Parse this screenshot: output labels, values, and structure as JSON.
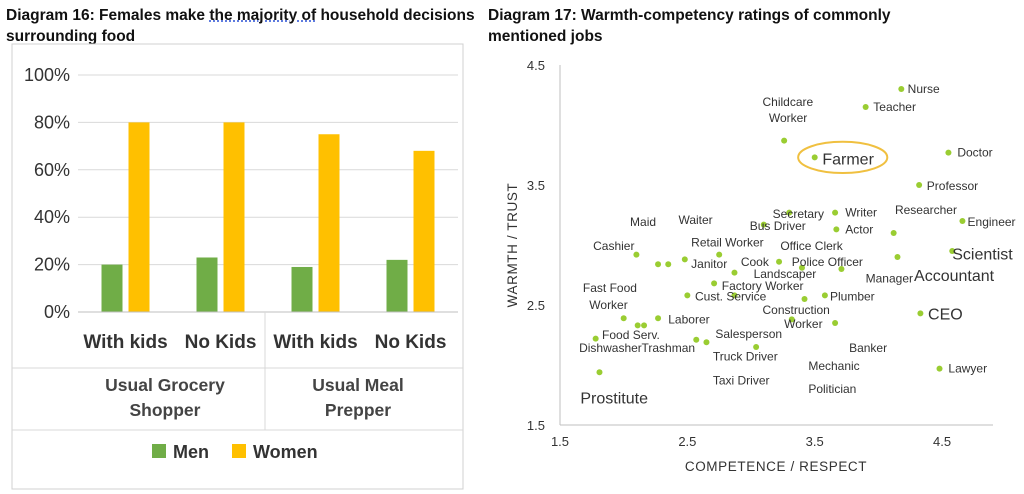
{
  "chart_data": [
    {
      "type": "bar",
      "title_prefix": "Diagram 16: Females make ",
      "title_link": "the majority of",
      "title_suffix": " household decisions surrounding food",
      "categories": [
        "With kids",
        "No Kids",
        "With kids",
        "No Kids"
      ],
      "groups": [
        {
          "label_lines": [
            "Usual Grocery",
            "Shopper"
          ],
          "span": [
            0,
            1
          ]
        },
        {
          "label_lines": [
            "Usual Meal",
            "Prepper"
          ],
          "span": [
            2,
            3
          ]
        }
      ],
      "series": [
        {
          "name": "Men",
          "color": "#70ad47",
          "values": [
            0.2,
            0.23,
            0.19,
            0.22
          ]
        },
        {
          "name": "Women",
          "color": "#ffc000",
          "values": [
            0.8,
            0.8,
            0.75,
            0.68
          ]
        }
      ],
      "ylim": [
        0,
        1
      ],
      "yticks": [
        "0%",
        "20%",
        "40%",
        "60%",
        "80%",
        "100%"
      ],
      "grid": true,
      "legend": "bottom"
    },
    {
      "type": "scatter",
      "title_lines": [
        "Diagram 17: Warmth-competency ratings of commonly",
        "mentioned jobs"
      ],
      "xlabel": "COMPETENCE / RESPECT",
      "ylabel": "WARMTH / TRUST",
      "xlim": [
        1.5,
        4.9
      ],
      "ylim": [
        1.5,
        4.5
      ],
      "xticks": [
        "1.5",
        "2.5",
        "3.5",
        "4.5"
      ],
      "yticks": [
        "1.5",
        "2.5",
        "3.5",
        "4.5"
      ],
      "grid": false,
      "point_color": "#9acd32",
      "points": [
        {
          "x": 4.18,
          "y": 4.3
        },
        {
          "x": 3.9,
          "y": 4.15
        },
        {
          "x": 3.26,
          "y": 3.87
        },
        {
          "x": 3.5,
          "y": 3.73
        },
        {
          "x": 4.55,
          "y": 3.77
        },
        {
          "x": 4.32,
          "y": 3.5
        },
        {
          "x": 3.66,
          "y": 3.27
        },
        {
          "x": 4.66,
          "y": 3.2
        },
        {
          "x": 3.67,
          "y": 3.13
        },
        {
          "x": 3.3,
          "y": 3.27
        },
        {
          "x": 3.1,
          "y": 3.17
        },
        {
          "x": 4.12,
          "y": 3.1
        },
        {
          "x": 4.15,
          "y": 2.9
        },
        {
          "x": 4.58,
          "y": 2.95
        },
        {
          "x": 2.75,
          "y": 2.92
        },
        {
          "x": 2.1,
          "y": 2.92
        },
        {
          "x": 2.27,
          "y": 2.84
        },
        {
          "x": 2.35,
          "y": 2.84
        },
        {
          "x": 2.48,
          "y": 2.88
        },
        {
          "x": 3.22,
          "y": 2.86
        },
        {
          "x": 3.4,
          "y": 2.81
        },
        {
          "x": 3.71,
          "y": 2.8
        },
        {
          "x": 2.87,
          "y": 2.77
        },
        {
          "x": 2.71,
          "y": 2.68
        },
        {
          "x": 2.5,
          "y": 2.58
        },
        {
          "x": 2.87,
          "y": 2.58
        },
        {
          "x": 3.42,
          "y": 2.55
        },
        {
          "x": 3.58,
          "y": 2.58
        },
        {
          "x": 4.33,
          "y": 2.43
        },
        {
          "x": 2.0,
          "y": 2.39
        },
        {
          "x": 2.27,
          "y": 2.39
        },
        {
          "x": 2.16,
          "y": 2.33
        },
        {
          "x": 2.11,
          "y": 2.33
        },
        {
          "x": 3.32,
          "y": 2.38
        },
        {
          "x": 3.66,
          "y": 2.35
        },
        {
          "x": 2.57,
          "y": 2.21
        },
        {
          "x": 2.65,
          "y": 2.19
        },
        {
          "x": 1.78,
          "y": 2.22
        },
        {
          "x": 3.04,
          "y": 2.15
        },
        {
          "x": 4.48,
          "y": 1.97
        },
        {
          "x": 1.81,
          "y": 1.94
        }
      ],
      "labels": [
        {
          "text": "Nurse",
          "x": 4.23,
          "y": 4.3,
          "size": "s"
        },
        {
          "text": "Childcare",
          "x": 3.09,
          "y": 4.19,
          "size": "s"
        },
        {
          "text": "Worker",
          "x": 3.14,
          "y": 4.06,
          "size": "s"
        },
        {
          "text": "Teacher",
          "x": 3.96,
          "y": 4.15,
          "size": "s"
        },
        {
          "text": "Farmer",
          "x": 3.56,
          "y": 3.72,
          "size": "l"
        },
        {
          "text": "Doctor",
          "x": 4.62,
          "y": 3.77,
          "size": "s"
        },
        {
          "text": "Professor",
          "x": 4.38,
          "y": 3.49,
          "size": "s"
        },
        {
          "text": "Researcher",
          "x": 4.13,
          "y": 3.29,
          "size": "s"
        },
        {
          "text": "Engineer",
          "x": 4.7,
          "y": 3.19,
          "size": "s"
        },
        {
          "text": "Writer",
          "x": 3.74,
          "y": 3.27,
          "size": "s"
        },
        {
          "text": "Secretary",
          "x": 3.17,
          "y": 3.26,
          "size": "s"
        },
        {
          "text": "Bus Driver",
          "x": 2.99,
          "y": 3.16,
          "size": "s"
        },
        {
          "text": "Actor",
          "x": 3.74,
          "y": 3.13,
          "size": "s"
        },
        {
          "text": "Waiter",
          "x": 2.43,
          "y": 3.21,
          "size": "s"
        },
        {
          "text": "Maid",
          "x": 2.05,
          "y": 3.19,
          "size": "s"
        },
        {
          "text": "Scientist",
          "x": 4.58,
          "y": 2.93,
          "size": "l"
        },
        {
          "text": "Retail Worker",
          "x": 2.53,
          "y": 3.02,
          "size": "s"
        },
        {
          "text": "Office Clerk",
          "x": 3.23,
          "y": 2.99,
          "size": "s"
        },
        {
          "text": "Cashier",
          "x": 1.76,
          "y": 2.99,
          "size": "s"
        },
        {
          "text": "Cook",
          "x": 2.92,
          "y": 2.86,
          "size": "s"
        },
        {
          "text": "Police Officer",
          "x": 3.32,
          "y": 2.86,
          "size": "s"
        },
        {
          "text": "Janitor",
          "x": 2.53,
          "y": 2.84,
          "size": "s"
        },
        {
          "text": "Landscaper",
          "x": 3.02,
          "y": 2.76,
          "size": "s"
        },
        {
          "text": "Accountant",
          "x": 4.28,
          "y": 2.75,
          "size": "l"
        },
        {
          "text": "Manager",
          "x": 3.9,
          "y": 2.72,
          "size": "s"
        },
        {
          "text": "Factory Worker",
          "x": 2.77,
          "y": 2.66,
          "size": "s"
        },
        {
          "text": "Fast Food",
          "x": 1.68,
          "y": 2.64,
          "size": "s"
        },
        {
          "text": "Worker",
          "x": 1.73,
          "y": 2.5,
          "size": "s"
        },
        {
          "text": "Cust. Service",
          "x": 2.56,
          "y": 2.57,
          "size": "s"
        },
        {
          "text": "Plumber",
          "x": 3.62,
          "y": 2.57,
          "size": "s"
        },
        {
          "text": "Construction",
          "x": 3.09,
          "y": 2.46,
          "size": "s"
        },
        {
          "text": "CEO",
          "x": 4.39,
          "y": 2.43,
          "size": "l"
        },
        {
          "text": "Laborer",
          "x": 2.35,
          "y": 2.38,
          "size": "s"
        },
        {
          "text": "Worker",
          "x": 3.26,
          "y": 2.34,
          "size": "s"
        },
        {
          "text": "Salesperson",
          "x": 2.72,
          "y": 2.26,
          "size": "s"
        },
        {
          "text": "Food Serv.",
          "x": 1.83,
          "y": 2.25,
          "size": "s"
        },
        {
          "text": "Dishwasher",
          "x": 1.65,
          "y": 2.14,
          "size": "s"
        },
        {
          "text": "Trashman",
          "x": 2.14,
          "y": 2.14,
          "size": "s"
        },
        {
          "text": "Banker",
          "x": 3.77,
          "y": 2.14,
          "size": "s"
        },
        {
          "text": "Truck Driver",
          "x": 2.7,
          "y": 2.07,
          "size": "s"
        },
        {
          "text": "Mechanic",
          "x": 3.45,
          "y": 1.99,
          "size": "s"
        },
        {
          "text": "Lawyer",
          "x": 4.55,
          "y": 1.97,
          "size": "s"
        },
        {
          "text": "Taxi Driver",
          "x": 2.7,
          "y": 1.87,
          "size": "s"
        },
        {
          "text": "Politician",
          "x": 3.45,
          "y": 1.8,
          "size": "s"
        },
        {
          "text": "Prostitute",
          "x": 1.66,
          "y": 1.73,
          "size": "l"
        }
      ],
      "highlight": {
        "label": "Farmer",
        "cx": 3.72,
        "cy": 3.73,
        "rx": 0.35,
        "ry": 0.13,
        "color": "#f0c040"
      }
    }
  ]
}
